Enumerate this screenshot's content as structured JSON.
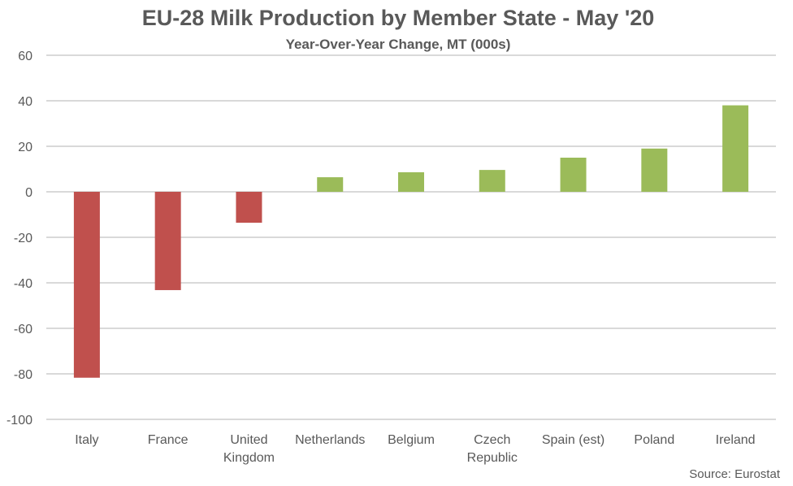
{
  "chart_data": {
    "type": "bar",
    "title": "EU-28 Milk Production by Member State - May '20",
    "subtitle": "Year-Over-Year Change, MT (000s)",
    "xlabel": "",
    "ylabel": "",
    "ylim": [
      -100,
      60
    ],
    "yticks": [
      60,
      40,
      20,
      0,
      -20,
      -40,
      -60,
      -80,
      -100
    ],
    "ytick_labels": [
      "60",
      "40",
      "20",
      "0",
      "-20",
      "-40",
      "-60",
      "-80",
      "-100"
    ],
    "grid": true,
    "categories": [
      "Italy",
      "France",
      "United Kingdom",
      "Netherlands",
      "Belgium",
      "Czech Republic",
      "Spain (est)",
      "Poland",
      "Ireland"
    ],
    "category_label_lines": [
      [
        "Italy"
      ],
      [
        "France"
      ],
      [
        "United",
        "Kingdom"
      ],
      [
        "Netherlands"
      ],
      [
        "Belgium"
      ],
      [
        "Czech",
        "Republic"
      ],
      [
        "Spain (est)"
      ],
      [
        "Poland"
      ],
      [
        "Ireland"
      ]
    ],
    "values": [
      -81.7,
      -43.2,
      -13.6,
      6.4,
      8.6,
      9.6,
      15.0,
      19.0,
      38.0
    ],
    "colors": {
      "negative": "#c0504d",
      "positive": "#9bbb59"
    },
    "source": "Source: Eurostat"
  }
}
